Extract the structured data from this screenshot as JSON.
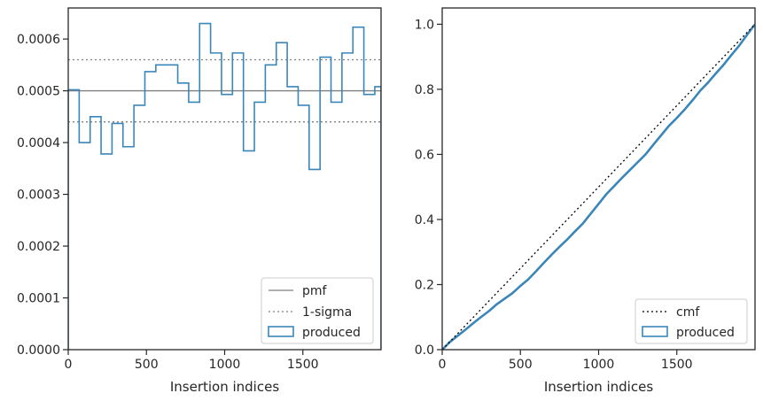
{
  "chart_data": [
    {
      "type": "histogram-step",
      "xlabel": "Insertion indices",
      "ylabel": "",
      "xlim": [
        0,
        2000
      ],
      "ylim": [
        0,
        0.00066
      ],
      "xticks": [
        0,
        500,
        1000,
        1500
      ],
      "yticks": [
        "0.0000",
        "0.0001",
        "0.0002",
        "0.0003",
        "0.0004",
        "0.0005",
        "0.0006"
      ],
      "ytick_values": [
        0,
        0.0001,
        0.0002,
        0.0003,
        0.0004,
        0.0005,
        0.0006
      ],
      "bins": [
        0,
        70,
        140,
        210,
        280,
        350,
        420,
        490,
        560,
        630,
        700,
        770,
        840,
        910,
        980,
        1050,
        1120,
        1190,
        1260,
        1330,
        1400,
        1470,
        1540,
        1610,
        1680,
        1750,
        1820,
        1890,
        1960,
        2000
      ],
      "series": [
        {
          "name": "produced",
          "values": [
            0.000502,
            0.0004,
            0.00045,
            0.000378,
            0.000437,
            0.000392,
            0.000472,
            0.000537,
            0.00055,
            0.00055,
            0.000515,
            0.000478,
            0.00063,
            0.000573,
            0.000493,
            0.000573,
            0.000384,
            0.000478,
            0.00055,
            0.000593,
            0.000508,
            0.000472,
            0.000348,
            0.000565,
            0.000478,
            0.000573,
            0.000623,
            0.000493,
            0.000508
          ],
          "color": "#3b86b9"
        }
      ],
      "reference_lines": [
        {
          "name": "pmf",
          "y": 0.0005,
          "style": "solid",
          "color": "#7f7f7f"
        },
        {
          "name": "1-sigma",
          "y": 0.00056,
          "style": "dotted",
          "color": "#7f7f7f"
        },
        {
          "name": "1-sigma-lower",
          "y": 0.00044,
          "style": "dotted",
          "color": "#7f7f7f"
        }
      ],
      "legend": {
        "placement": "bottom-right",
        "entries": [
          "pmf",
          "1-sigma",
          "produced"
        ]
      }
    },
    {
      "type": "line",
      "xlabel": "Insertion indices",
      "ylabel": "",
      "xlim": [
        0,
        2000
      ],
      "ylim": [
        0,
        1.05
      ],
      "xticks": [
        0,
        500,
        1000,
        1500
      ],
      "yticks": [
        "0.0",
        "0.2",
        "0.4",
        "0.6",
        "0.8",
        "1.0"
      ],
      "ytick_values": [
        0,
        0.2,
        0.4,
        0.6,
        0.8,
        1.0
      ],
      "series": [
        {
          "name": "cmf",
          "x": [
            0,
            2000
          ],
          "y": [
            0,
            1.0
          ],
          "style": "dotted",
          "color": "#000000"
        },
        {
          "name": "produced",
          "x": [
            0,
            50,
            100,
            150,
            200,
            250,
            300,
            350,
            400,
            450,
            500,
            550,
            600,
            650,
            700,
            750,
            800,
            850,
            900,
            950,
            1000,
            1050,
            1100,
            1150,
            1200,
            1250,
            1300,
            1350,
            1400,
            1450,
            1500,
            1550,
            1600,
            1650,
            1700,
            1750,
            1800,
            1850,
            1900,
            1950,
            2000
          ],
          "y": [
            0,
            0.024,
            0.043,
            0.062,
            0.082,
            0.101,
            0.119,
            0.14,
            0.157,
            0.174,
            0.196,
            0.216,
            0.241,
            0.267,
            0.292,
            0.316,
            0.339,
            0.364,
            0.388,
            0.418,
            0.448,
            0.478,
            0.503,
            0.528,
            0.552,
            0.576,
            0.6,
            0.63,
            0.659,
            0.688,
            0.712,
            0.738,
            0.766,
            0.796,
            0.821,
            0.849,
            0.876,
            0.906,
            0.935,
            0.968,
            1.0
          ],
          "color": "#3b86b9"
        }
      ],
      "legend": {
        "placement": "bottom-right",
        "entries": [
          "cmf",
          "produced"
        ]
      }
    }
  ]
}
